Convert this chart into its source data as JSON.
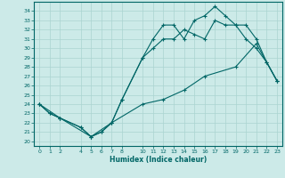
{
  "xlabel": "Humidex (Indice chaleur)",
  "background_color": "#cceae8",
  "line_color": "#006666",
  "grid_color": "#aad4d0",
  "xlim": [
    -0.5,
    23.5
  ],
  "ylim": [
    19.5,
    35.0
  ],
  "xticks": [
    0,
    1,
    2,
    4,
    5,
    6,
    7,
    8,
    10,
    11,
    12,
    13,
    14,
    15,
    16,
    17,
    18,
    19,
    20,
    21,
    22,
    23
  ],
  "yticks": [
    20,
    21,
    22,
    23,
    24,
    25,
    26,
    27,
    28,
    29,
    30,
    31,
    32,
    33,
    34
  ],
  "series1_x": [
    0,
    1,
    2,
    4,
    5,
    6,
    7,
    8,
    10,
    11,
    12,
    13,
    14,
    15,
    16,
    17,
    18,
    19,
    20,
    21,
    22,
    23
  ],
  "series1_y": [
    24,
    23,
    22.5,
    21.5,
    20.5,
    21,
    22,
    24.5,
    29,
    31,
    32.5,
    32.5,
    31,
    33,
    33.5,
    34.5,
    33.5,
    32.5,
    32.5,
    31,
    28.5,
    26.5
  ],
  "series2_x": [
    0,
    1,
    2,
    4,
    5,
    6,
    7,
    8,
    10,
    11,
    12,
    13,
    14,
    15,
    16,
    17,
    18,
    19,
    20,
    21,
    22,
    23
  ],
  "series2_y": [
    24,
    23,
    22.5,
    21.5,
    20.5,
    21,
    22,
    24.5,
    29,
    30,
    31,
    31,
    32,
    31.5,
    31,
    33,
    32.5,
    32.5,
    31,
    30,
    28.5,
    26.5
  ],
  "series3_x": [
    0,
    2,
    5,
    7,
    10,
    12,
    14,
    16,
    19,
    21,
    23
  ],
  "series3_y": [
    24,
    22.5,
    20.5,
    22,
    24,
    24.5,
    25.5,
    27,
    28,
    30.5,
    26.5
  ]
}
